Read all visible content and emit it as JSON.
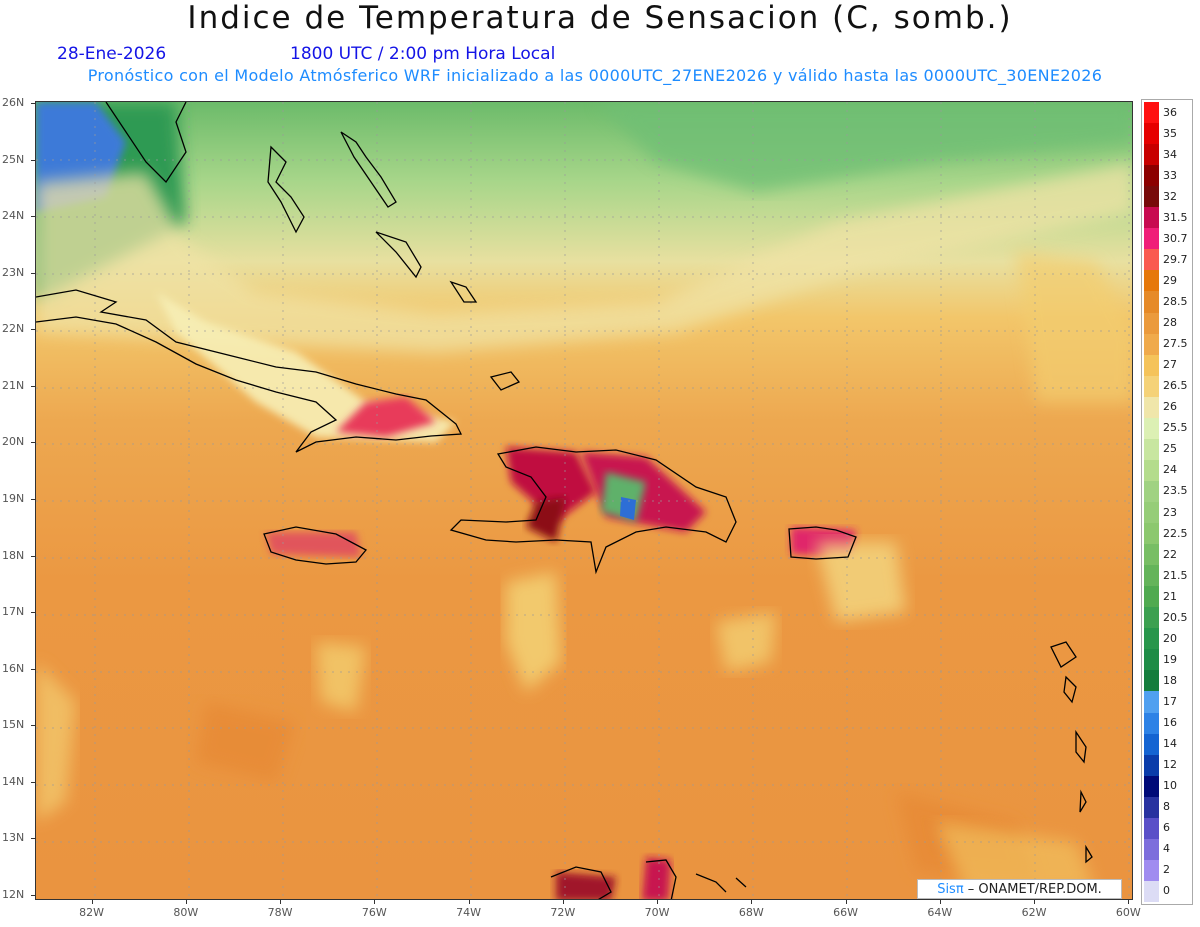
{
  "header": {
    "title": "Indice de Temperatura de Sensacion (C, somb.)",
    "date": "28-Ene-2026",
    "time": "1800 UTC / 2:00 pm Hora Local",
    "model_line": "Pronóstico con el Modelo Atmósferico WRF inicializado a las 0000UTC_27ENE2026 y válido hasta las  0000UTC_30ENE2026"
  },
  "map": {
    "lat_labels": [
      "26N",
      "25N",
      "24N",
      "23N",
      "22N",
      "21N",
      "20N",
      "19N",
      "18N",
      "17N",
      "16N",
      "15N",
      "14N",
      "13N",
      "12N"
    ],
    "lon_labels": [
      "82W",
      "80W",
      "78W",
      "76W",
      "74W",
      "72W",
      "70W",
      "68W",
      "66W",
      "64W",
      "62W",
      "60W"
    ],
    "lat_range": [
      12,
      26
    ],
    "lon_range": [
      -83.2,
      -59.9
    ],
    "grid": true
  },
  "credit": {
    "brand": "Sisπ",
    "text": " – ONAMET/REP.DOM."
  },
  "colorbar": {
    "labels": [
      "36",
      "35",
      "34",
      "33",
      "32",
      "31.5",
      "30.7",
      "29.7",
      "29",
      "28.5",
      "28",
      "27.5",
      "27",
      "26.5",
      "26",
      "25.5",
      "25",
      "24",
      "23.5",
      "23",
      "22.5",
      "22",
      "21.5",
      "21",
      "20.5",
      "20",
      "19",
      "18",
      "17",
      "16",
      "14",
      "12",
      "10",
      "8",
      "6",
      "4",
      "2",
      "0"
    ],
    "colors": [
      "#ff1010",
      "#e60000",
      "#c80000",
      "#8c0000",
      "#780a0a",
      "#c80a50",
      "#f01e78",
      "#fa5a50",
      "#e6780a",
      "#e68a28",
      "#eb9a3c",
      "#f0aa4b",
      "#f5c35a",
      "#f5d278",
      "#f0e6aa",
      "#dcf0b4",
      "#c8e6a0",
      "#b4dc8c",
      "#a0d282",
      "#96cd78",
      "#8cc86e",
      "#78be64",
      "#64b45a",
      "#50aa50",
      "#3ca050",
      "#28964b",
      "#1e8c46",
      "#147d3c",
      "#50a0f0",
      "#2d82e6",
      "#1464d2",
      "#0a3caa",
      "#000a78",
      "#2832a0",
      "#5a50c8",
      "#7d6edc",
      "#a08cf0",
      "#dcdcf5"
    ]
  }
}
